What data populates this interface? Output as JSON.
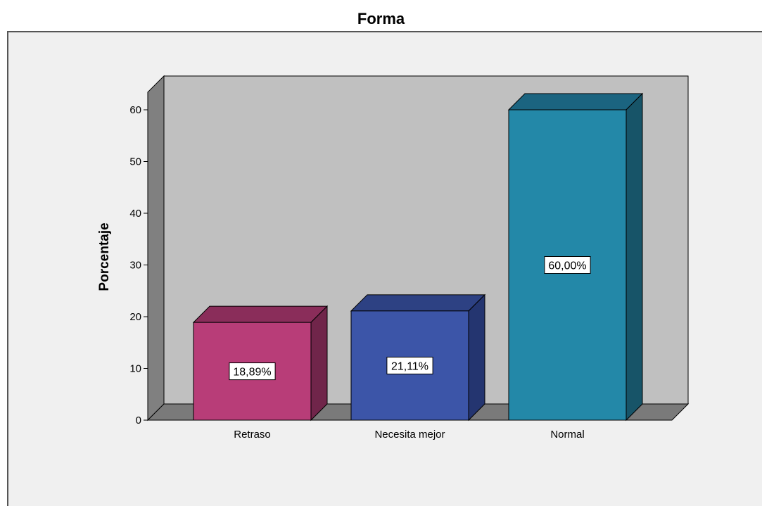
{
  "chart_data": {
    "type": "bar",
    "title": "Forma",
    "xlabel": "",
    "ylabel": "Porcentaje",
    "ylim": [
      0,
      60
    ],
    "yticks": [
      "0",
      "10",
      "20",
      "30",
      "40",
      "50",
      "60"
    ],
    "categories": [
      "Retraso",
      "Necesita mejor",
      "Normal"
    ],
    "values": [
      18.89,
      21.11,
      60.0
    ],
    "data_labels": [
      "18,89%",
      "21,11%",
      "60,00%"
    ],
    "colors": [
      "#b83d78",
      "#3c55a8",
      "#2388a8"
    ],
    "side_colors": [
      "#70254a",
      "#243570",
      "#175468"
    ],
    "top_colors": [
      "#8a2d5a",
      "#2d4183",
      "#1b6480"
    ],
    "style": "3d",
    "grid": false,
    "legend": "none"
  }
}
